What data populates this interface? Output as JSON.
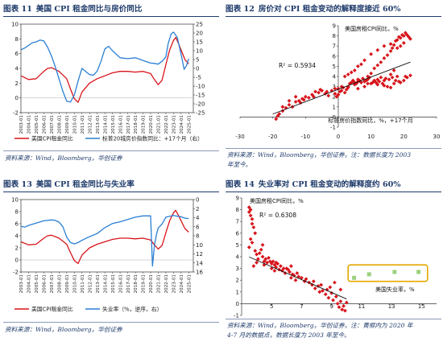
{
  "colors": {
    "title": "#1f3b6b",
    "red": "#d7141a",
    "blue": "#2a7fd4",
    "green": "#9bd07f",
    "gold": "#e5a800"
  },
  "panels": {
    "p11": {
      "title_num": "图表 11",
      "title_text": "美国 CPI 租金同比与房价同比",
      "source": "资料来源：Wind，Bloomberg，华创证券"
    },
    "p12": {
      "title_num": "图表 12",
      "title_text": "房价对 CPI 租金变动的解释度接近 60%",
      "source_1": "资料来源：Wind，Bloomberg，华创证券，注：数据长度为 2003",
      "source_2": "年至今。"
    },
    "p13": {
      "title_num": "图表 13",
      "title_text": "美国 CPI 租金同比与失业率",
      "source": "资料来源：Wind，Bloomberg，华创证券"
    },
    "p14": {
      "title_num": "图表 14",
      "title_text": "失业率对 CPI 租金变动的解释度约 60%",
      "source_1": "资料来源：Wind，Bloomberg，华创证券，注：黄框内为 2020 年",
      "source_2": "4-7 月的数据点，数据长度为 2003 年至今。"
    }
  },
  "chart_data": [
    {
      "type": "line",
      "categories": [
        "2003-01",
        "2004-01",
        "2005-01",
        "2006-01",
        "2007-01",
        "2008-01",
        "2009-01",
        "2010-01",
        "2011-01",
        "2012-01",
        "2013-01",
        "2014-01",
        "2015-01",
        "2016-01",
        "2017-01",
        "2018-01",
        "2019-01",
        "2020-01",
        "2021-01",
        "2022-01",
        "2023-01",
        "2024-01",
        "2025-01"
      ],
      "left_ticks": [
        "10",
        "8",
        "6",
        "4",
        "2",
        "0",
        "-2"
      ],
      "right_ticks": [
        "25",
        "20",
        "15",
        "10",
        "5",
        "0",
        "-5",
        "-10",
        "-15",
        "-20",
        "-25"
      ],
      "ylim_left": [
        -2,
        10
      ],
      "ylim_right": [
        -25,
        25
      ],
      "series": [
        {
          "name": "美国CPI租金同比",
          "axis": "left",
          "color": "#d7141a",
          "x": [
            2003,
            2004,
            2005,
            2006,
            2006.5,
            2007,
            2008,
            2009,
            2009.5,
            2010,
            2010.5,
            2011,
            2012,
            2013,
            2014,
            2015,
            2016,
            2017,
            2018,
            2019,
            2020,
            2020.5,
            2021,
            2021.5,
            2022,
            2022.5,
            2023,
            2023.3,
            2023.6,
            2024,
            2024.5,
            2025
          ],
          "y": [
            3.0,
            2.5,
            2.6,
            3.6,
            4.0,
            4.1,
            3.6,
            2.6,
            1.2,
            -0.1,
            -0.6,
            0.8,
            2.0,
            2.6,
            3.0,
            3.4,
            3.6,
            3.6,
            3.5,
            3.6,
            3.3,
            2.5,
            1.8,
            2.4,
            4.5,
            6.5,
            7.8,
            8.2,
            7.5,
            6.5,
            5.2,
            4.6
          ]
        },
        {
          "name": "标普20城房价指数同比：+17个月（右）",
          "axis": "right",
          "color": "#2a7fd4",
          "x": [
            2003,
            2003.5,
            2004,
            2004.5,
            2005,
            2005.5,
            2006,
            2006.5,
            2007,
            2007.5,
            2008,
            2008.5,
            2009,
            2009.5,
            2010,
            2010.5,
            2011,
            2012,
            2012.5,
            2013,
            2013.5,
            2014,
            2014.5,
            2015,
            2016,
            2017,
            2018,
            2019,
            2020,
            2020.5,
            2021,
            2021.5,
            2022,
            2022.3,
            2022.7,
            2023,
            2023.5,
            2024,
            2024.4,
            2024.7,
            2025
          ],
          "y": [
            10.5,
            11.5,
            13.0,
            14.5,
            15.0,
            16.0,
            15.5,
            12.0,
            7.0,
            1.0,
            -6.0,
            -13.0,
            -18.5,
            -19.0,
            -15.0,
            -7.0,
            0.0,
            -3.5,
            -3.8,
            -1.5,
            4.0,
            11.0,
            12.5,
            10.0,
            6.0,
            5.5,
            6.0,
            4.5,
            3.0,
            2.8,
            2.4,
            4.0,
            6.5,
            14.0,
            19.5,
            20.5,
            17.5,
            8.0,
            -0.5,
            1.5,
            5.5
          ]
        }
      ]
    },
    {
      "type": "scatter",
      "x_ticks": [
        "-30",
        "-20",
        "-10",
        "0",
        "10",
        "20",
        "30"
      ],
      "y_ticks": [
        "9",
        "8",
        "7",
        "6",
        "5",
        "4",
        "3",
        "2",
        "1",
        "0",
        "-1"
      ],
      "xlim": [
        -30,
        30
      ],
      "ylim": [
        -1,
        9
      ],
      "annotations": {
        "r2": "R² = 0.5934",
        "series_label": "美国房租CPI同比，%",
        "x_label": "标普房价指数同比，%，+17个月"
      },
      "trend": {
        "slope": 0.122,
        "intercept": 2.73
      },
      "points": [
        [
          -19,
          -0.2
        ],
        [
          -18.5,
          0.1
        ],
        [
          -18,
          0.3
        ],
        [
          -17,
          0.6
        ],
        [
          -16,
          0.9
        ],
        [
          -15,
          1.2
        ],
        [
          -14,
          1.0
        ],
        [
          -13,
          1.5
        ],
        [
          -12,
          1.6
        ],
        [
          -11.5,
          1.4
        ],
        [
          -11,
          1.8
        ],
        [
          -10.5,
          1.7
        ],
        [
          -10,
          2.0
        ],
        [
          -9,
          1.9
        ],
        [
          -8,
          2.2
        ],
        [
          -7.5,
          2.0
        ],
        [
          -7,
          2.5
        ],
        [
          -6,
          2.4
        ],
        [
          -5.5,
          2.7
        ],
        [
          -5,
          2.6
        ],
        [
          -4,
          2.3
        ],
        [
          -3.5,
          2.5
        ],
        [
          -3,
          2.1
        ],
        [
          -2,
          2.6
        ],
        [
          -1,
          2.8
        ],
        [
          -0.5,
          2.0
        ],
        [
          0,
          2.2
        ],
        [
          0.5,
          2.5
        ],
        [
          1,
          2.6
        ],
        [
          1.5,
          2.9
        ],
        [
          2,
          2.4
        ],
        [
          2.5,
          2.7
        ],
        [
          3,
          3.0
        ],
        [
          3.5,
          3.3
        ],
        [
          4,
          3.4
        ],
        [
          4.5,
          3.6
        ],
        [
          5,
          3.2
        ],
        [
          5,
          3.4
        ],
        [
          5.5,
          3.3
        ],
        [
          6,
          3.7
        ],
        [
          6,
          3.5
        ],
        [
          6.5,
          3.6
        ],
        [
          7,
          3.4
        ],
        [
          7.5,
          3.8
        ],
        [
          8,
          3.5
        ],
        [
          8.5,
          3.6
        ],
        [
          9,
          3.7
        ],
        [
          9.5,
          3.9
        ],
        [
          10,
          3.3
        ],
        [
          10.5,
          3.4
        ],
        [
          11,
          3.6
        ],
        [
          11.5,
          3.4
        ],
        [
          12,
          3.7
        ],
        [
          12.5,
          3.5
        ],
        [
          13,
          3.9
        ],
        [
          13.5,
          3.3
        ],
        [
          14,
          3.6
        ],
        [
          14.5,
          3.8
        ],
        [
          15,
          3.0
        ],
        [
          15.5,
          3.7
        ],
        [
          16,
          4.2
        ],
        [
          16.5,
          3.9
        ],
        [
          17,
          4.6
        ],
        [
          17,
          3.3
        ],
        [
          17.5,
          3.6
        ],
        [
          18,
          4.0
        ],
        [
          18.5,
          3.5
        ],
        [
          19,
          3.4
        ],
        [
          20,
          3.6
        ],
        [
          20.5,
          4.0
        ],
        [
          21,
          3.9
        ],
        [
          22,
          4.1
        ],
        [
          9,
          4.0
        ],
        [
          10,
          4.3
        ],
        [
          11,
          4.8
        ],
        [
          12,
          5.1
        ],
        [
          13,
          5.4
        ],
        [
          14,
          5.8
        ],
        [
          15,
          6.1
        ],
        [
          16,
          6.5
        ],
        [
          16.5,
          6.8
        ],
        [
          17,
          7.1
        ],
        [
          17.5,
          7.5
        ],
        [
          18,
          7.6
        ],
        [
          18.5,
          7.9
        ],
        [
          19,
          7.8
        ],
        [
          19.5,
          8.1
        ],
        [
          20,
          8.0
        ],
        [
          20.5,
          8.3
        ],
        [
          21,
          8.1
        ],
        [
          21.5,
          7.9
        ],
        [
          22,
          7.7
        ],
        [
          20,
          7.3
        ],
        [
          19,
          7.0
        ],
        [
          18,
          6.8
        ],
        [
          16,
          7.2
        ],
        [
          14,
          7.0
        ],
        [
          12,
          6.6
        ],
        [
          10,
          6.2
        ],
        [
          8,
          5.6
        ],
        [
          7,
          5.2
        ],
        [
          6,
          5.0
        ],
        [
          5,
          4.6
        ],
        [
          4,
          4.4
        ],
        [
          3,
          4.2
        ],
        [
          2,
          4.0
        ],
        [
          0,
          2.8
        ],
        [
          -1,
          2.3
        ],
        [
          1,
          3.0
        ],
        [
          3,
          2.9
        ],
        [
          8,
          3.0
        ],
        [
          12,
          3.2
        ],
        [
          16,
          2.9
        ],
        [
          14,
          3.1
        ],
        [
          9,
          3.3
        ],
        [
          6,
          2.8
        ],
        [
          -15,
          1.6
        ],
        [
          -17,
          1.0
        ],
        [
          -13,
          2.0
        ]
      ]
    },
    {
      "type": "line",
      "categories": [
        "2003-01",
        "2004-01",
        "2005-01",
        "2006-01",
        "2007-01",
        "2008-01",
        "2009-01",
        "2010-01",
        "2011-01",
        "2012-01",
        "2013-01",
        "2014-01",
        "2015-01",
        "2016-01",
        "2017-01",
        "2018-01",
        "2019-01",
        "2020-01",
        "2021-01",
        "2022-01",
        "2023-01",
        "2024-01",
        "2025-01"
      ],
      "left_ticks": [
        "10",
        "8",
        "6",
        "4",
        "2",
        "0",
        "-2"
      ],
      "right_ticks": [
        "0",
        "2",
        "4",
        "6",
        "8",
        "10",
        "12",
        "14",
        "16"
      ],
      "ylim_left": [
        -2,
        10
      ],
      "ylim_right_inverted": [
        0,
        16
      ],
      "series": [
        {
          "name": "美国CPI租金同比",
          "axis": "left",
          "color": "#d7141a",
          "x": [
            2003,
            2004,
            2005,
            2006,
            2006.5,
            2007,
            2008,
            2009,
            2009.5,
            2010,
            2010.5,
            2011,
            2012,
            2013,
            2014,
            2015,
            2016,
            2017,
            2018,
            2019,
            2020,
            2020.5,
            2021,
            2021.5,
            2022,
            2022.5,
            2023,
            2023.3,
            2023.6,
            2024,
            2024.5,
            2025
          ],
          "y": [
            3.0,
            2.5,
            2.6,
            3.6,
            4.0,
            4.1,
            3.6,
            2.6,
            1.2,
            -0.1,
            -0.6,
            0.8,
            2.0,
            2.6,
            3.0,
            3.4,
            3.6,
            3.6,
            3.5,
            3.6,
            3.3,
            2.5,
            1.8,
            2.4,
            4.5,
            6.5,
            7.8,
            8.2,
            7.5,
            6.5,
            5.2,
            4.6
          ]
        },
        {
          "name": "失业率（%，逆序，右）",
          "axis": "right",
          "color": "#2a7fd4",
          "x": [
            2003,
            2003.5,
            2004,
            2005,
            2006,
            2007,
            2007.5,
            2008,
            2008.5,
            2009,
            2009.5,
            2010,
            2010.5,
            2011,
            2012,
            2013,
            2014,
            2015,
            2016,
            2017,
            2018,
            2019,
            2020,
            2020.25,
            2020.33,
            2020.5,
            2020.75,
            2021,
            2021.5,
            2022,
            2023,
            2023.5,
            2024,
            2024.5,
            2025
          ],
          "y": [
            5.9,
            6.1,
            5.7,
            5.2,
            4.7,
            4.5,
            4.6,
            5.0,
            6.0,
            8.3,
            9.5,
            9.8,
            9.5,
            9.0,
            8.2,
            7.5,
            6.2,
            5.3,
            4.9,
            4.4,
            3.9,
            3.6,
            3.6,
            14.7,
            13.2,
            10.2,
            7.8,
            6.3,
            5.4,
            3.9,
            3.5,
            3.7,
            3.8,
            4.1,
            4.2
          ]
        }
      ]
    },
    {
      "type": "scatter",
      "x_ticks": [
        "5",
        "7",
        "9",
        "11",
        "13",
        "15"
      ],
      "y_ticks": [
        "9",
        "8",
        "7",
        "6",
        "5",
        "4",
        "3",
        "2",
        "1",
        "0",
        "-1"
      ],
      "xlim": [
        3,
        16
      ],
      "ylim": [
        -1,
        9
      ],
      "annotations": {
        "r2": "R² = 0.6308",
        "series_label": "美国房租CPI同比，%",
        "x_label": "美国失业率，%"
      },
      "trend": {
        "slope": -0.55,
        "intercept": 5.9
      },
      "points": [
        [
          3.5,
          8.2
        ],
        [
          3.5,
          7.8
        ],
        [
          3.6,
          8.0
        ],
        [
          3.6,
          7.5
        ],
        [
          3.7,
          7.2
        ],
        [
          3.7,
          6.8
        ],
        [
          3.8,
          6.5
        ],
        [
          3.9,
          6.0
        ],
        [
          3.6,
          5.5
        ],
        [
          3.7,
          5.2
        ],
        [
          3.5,
          4.8
        ],
        [
          3.9,
          4.5
        ],
        [
          4.0,
          4.2
        ],
        [
          4.2,
          4.3
        ],
        [
          4.1,
          3.8
        ],
        [
          4.4,
          4.0
        ],
        [
          4.5,
          3.6
        ],
        [
          4.6,
          3.8
        ],
        [
          4.7,
          3.5
        ],
        [
          4.8,
          3.9
        ],
        [
          4.9,
          3.6
        ],
        [
          5.0,
          3.4
        ],
        [
          5.0,
          3.0
        ],
        [
          5.1,
          3.6
        ],
        [
          5.2,
          3.3
        ],
        [
          5.3,
          3.1
        ],
        [
          5.3,
          3.5
        ],
        [
          5.4,
          3.4
        ],
        [
          5.5,
          2.9
        ],
        [
          5.6,
          3.2
        ],
        [
          5.7,
          2.8
        ],
        [
          5.8,
          3.0
        ],
        [
          5.9,
          2.6
        ],
        [
          6.0,
          3.0
        ],
        [
          6.1,
          2.9
        ],
        [
          6.2,
          2.7
        ],
        [
          6.3,
          2.2
        ],
        [
          6.4,
          2.5
        ],
        [
          6.5,
          2.4
        ],
        [
          6.6,
          2.0
        ],
        [
          6.7,
          2.6
        ],
        [
          6.8,
          2.3
        ],
        [
          7.0,
          2.2
        ],
        [
          7.2,
          1.9
        ],
        [
          7.3,
          2.1
        ],
        [
          7.5,
          1.8
        ],
        [
          7.7,
          1.6
        ],
        [
          7.8,
          1.9
        ],
        [
          7.9,
          1.3
        ],
        [
          8.1,
          1.5
        ],
        [
          8.2,
          1.0
        ],
        [
          8.3,
          1.6
        ],
        [
          8.4,
          1.1
        ],
        [
          8.6,
          0.8
        ],
        [
          8.7,
          1.2
        ],
        [
          8.8,
          0.5
        ],
        [
          9.0,
          0.9
        ],
        [
          9.1,
          0.3
        ],
        [
          9.3,
          0.6
        ],
        [
          9.4,
          0.0
        ],
        [
          9.5,
          -0.3
        ],
        [
          9.6,
          0.2
        ],
        [
          9.7,
          -0.5
        ],
        [
          9.8,
          -0.2
        ],
        [
          9.9,
          -0.6
        ],
        [
          10.0,
          0.1
        ],
        [
          9.6,
          1.2
        ],
        [
          9.2,
          1.8
        ],
        [
          8.9,
          1.4
        ],
        [
          4.3,
          4.6
        ],
        [
          4.4,
          5.0
        ],
        [
          4.5,
          3.3
        ],
        [
          4.0,
          3.5
        ],
        [
          3.8,
          3.2
        ],
        [
          5.2,
          2.8
        ],
        [
          6.3,
          3.2
        ]
      ],
      "highlighted_points": [
        [
          10.5,
          2.2
        ],
        [
          11.5,
          2.5
        ],
        [
          13.2,
          2.7
        ],
        [
          14.8,
          2.7
        ]
      ]
    }
  ],
  "legend": {
    "p11_red": "美国CPI租金同比",
    "p11_blue": "标普20城房价指数同比：+17个月（右）",
    "p13_red": "美国CPI租金同比",
    "p13_blue": "失业率（%，逆序，右）"
  }
}
